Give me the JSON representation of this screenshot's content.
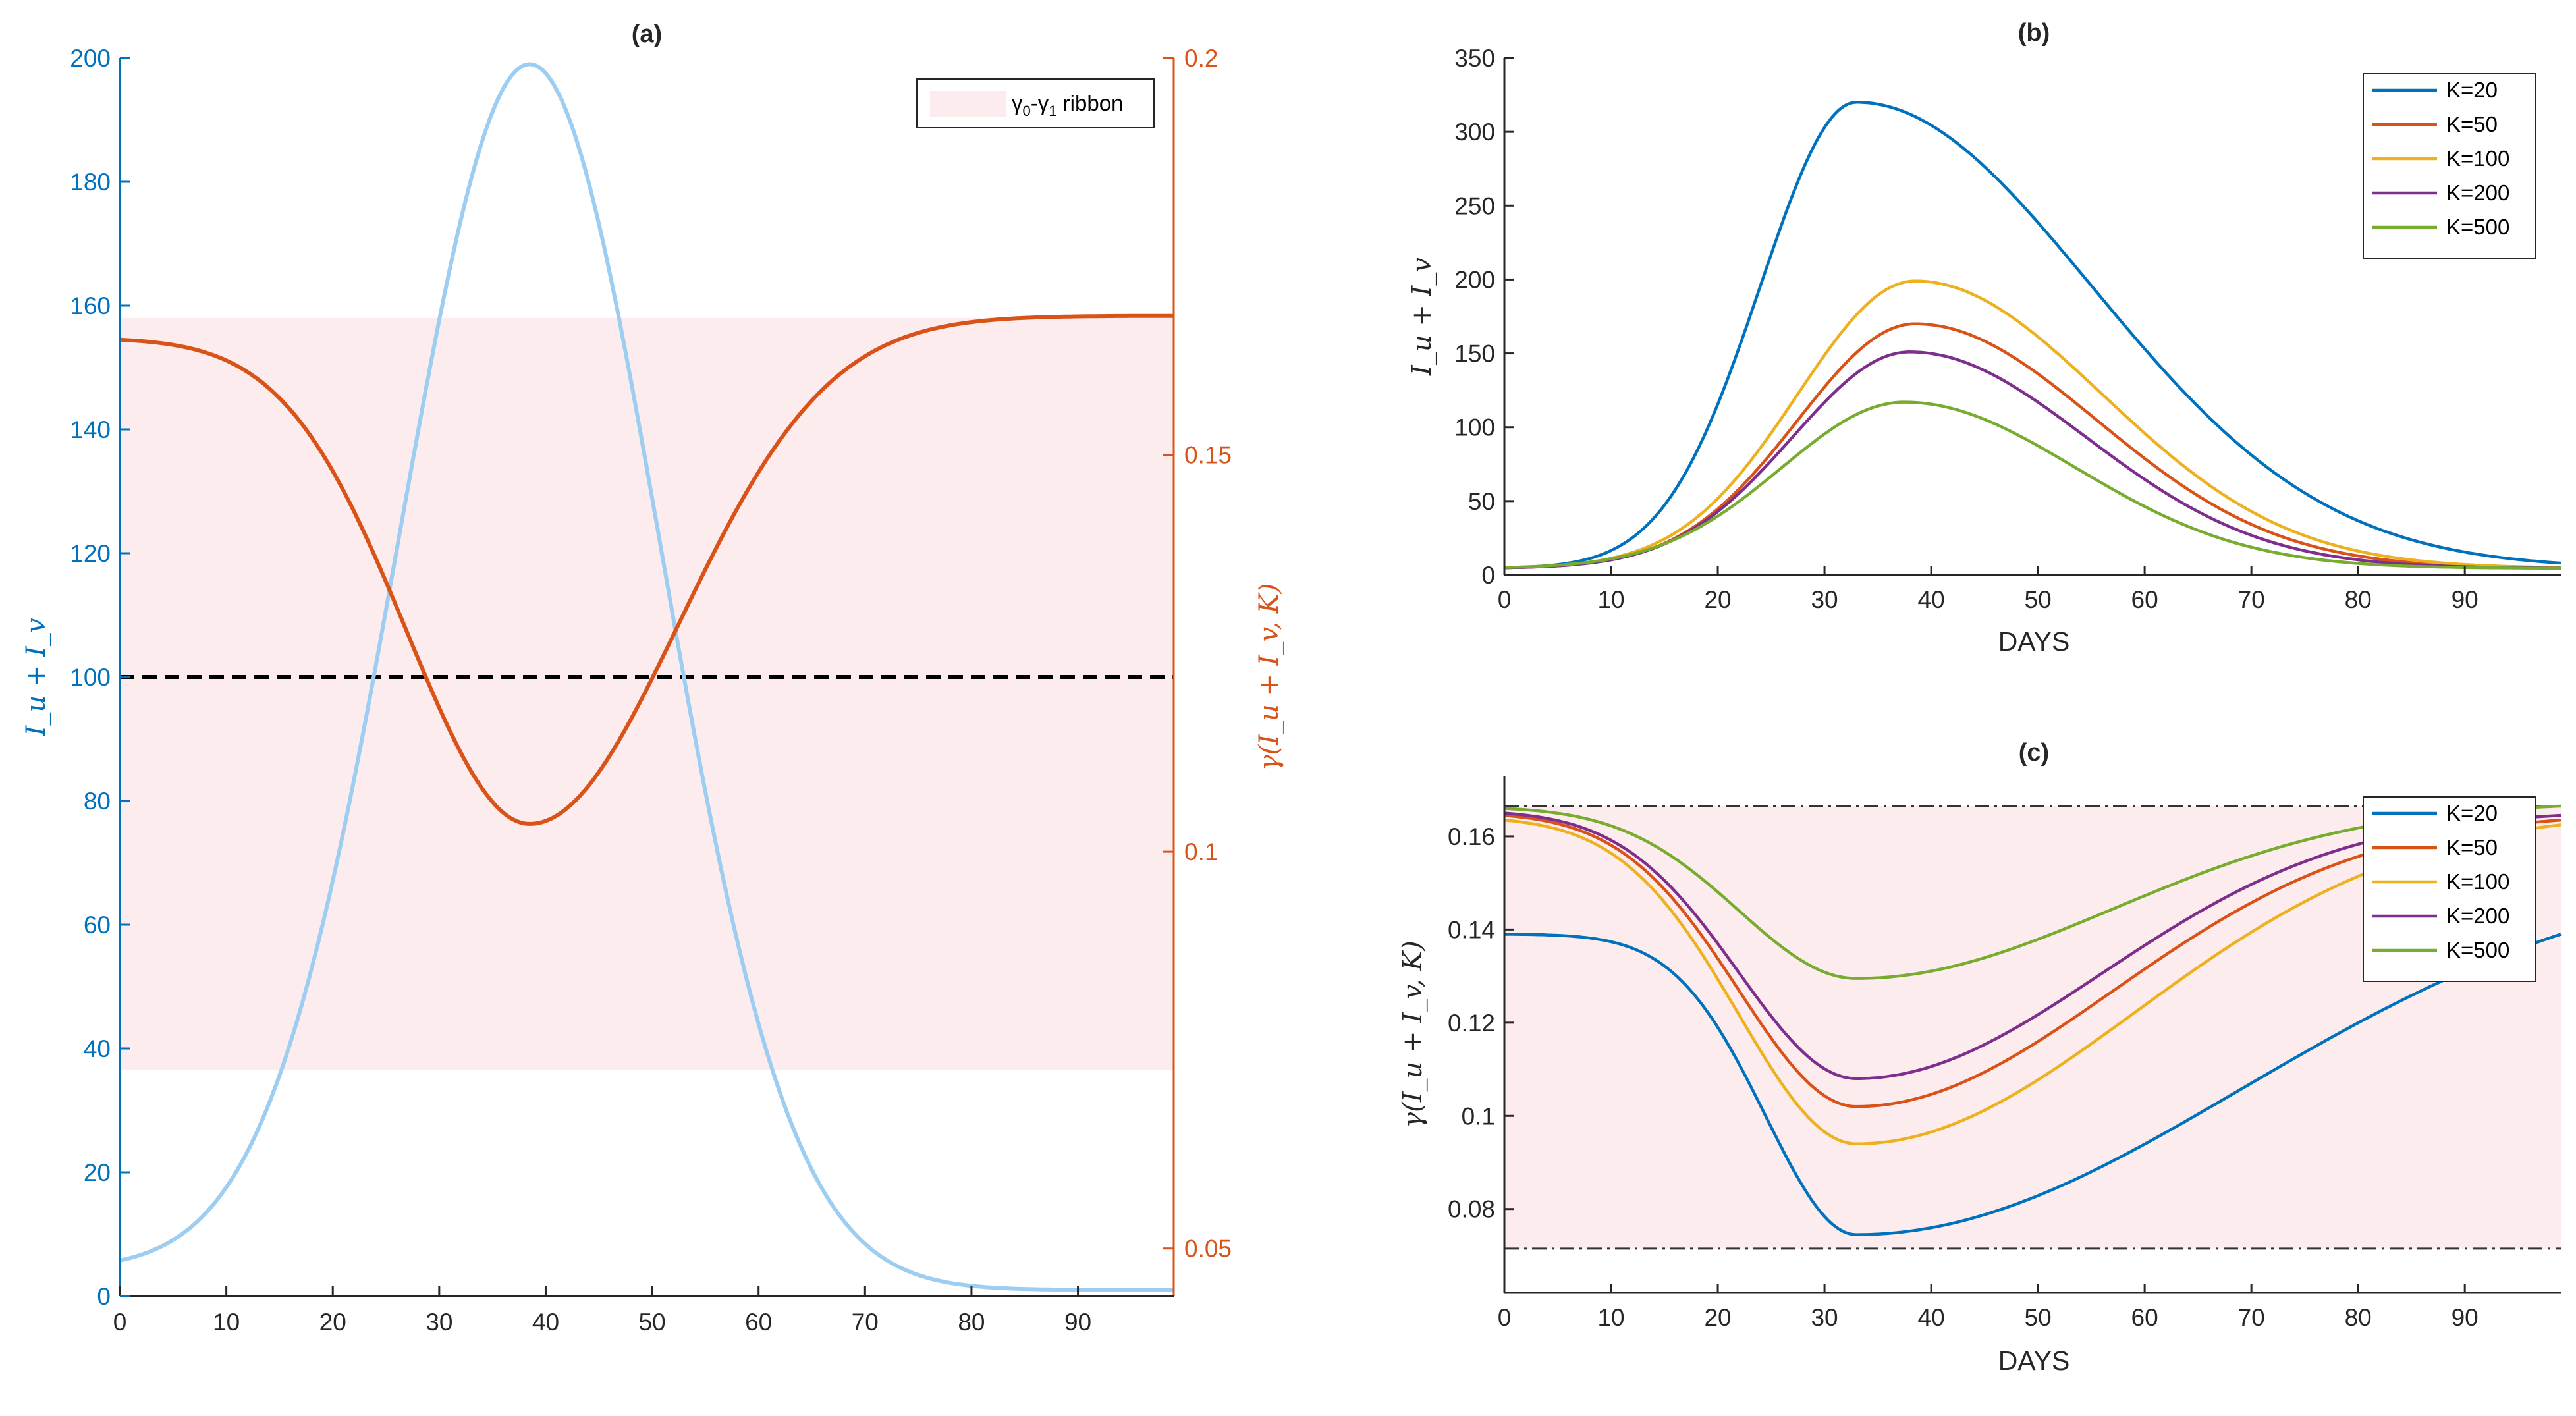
{
  "chart_data": [
    {
      "panel": "a",
      "type": "line",
      "title": "(a)",
      "xlabel": "",
      "ylabel_left": "I_u + I_v",
      "ylabel_right": "γ(I_u + I_v, K)",
      "xlim": [
        0,
        99
      ],
      "ylim_left": [
        0,
        200
      ],
      "ylim_right": [
        0.044,
        0.2
      ],
      "x_ticks": [
        "0",
        "10",
        "20",
        "30",
        "40",
        "50",
        "60",
        "70",
        "80",
        "90"
      ],
      "y_left_ticks": [
        "0",
        "20",
        "40",
        "60",
        "80",
        "100",
        "120",
        "140",
        "160",
        "180",
        "200"
      ],
      "y_right_ticks": [
        "0.05",
        "0.1",
        "0.15",
        "0.2"
      ],
      "ribbon": {
        "label_gamma0": "γ",
        "label_sub0": "0",
        "label_dash": "-",
        "label_gamma1": "γ",
        "label_sub1": "1",
        "label_word": "ribbon",
        "y_left_range": [
          36.5,
          158
        ],
        "color": "#fdeced"
      },
      "dashed_line": {
        "y": 100,
        "color": "#000000"
      },
      "series": [
        {
          "name": "I_u + I_v",
          "axis": "left",
          "color": "#9dcdf0",
          "curve": {
            "base": 4.3,
            "peak": 199,
            "peak_x": 38.5,
            "sigma": 12.3,
            "tail": 1,
            "end_x": 99
          }
        },
        {
          "name": "γ(I_u + I_v, K)",
          "axis": "right",
          "color": "#d95319",
          "curve": {
            "start": 0.1645,
            "min": 0.1035,
            "min_x": 38.5,
            "end": 0.1675,
            "sigma_left": 11.5,
            "sigma_right": 14.0
          }
        }
      ]
    },
    {
      "panel": "b",
      "type": "line",
      "title": "(b)",
      "xlabel": "DAYS",
      "ylabel": "I_u + I_v",
      "xlim": [
        0,
        99
      ],
      "ylim": [
        0,
        350
      ],
      "x_ticks": [
        "0",
        "10",
        "20",
        "30",
        "40",
        "50",
        "60",
        "70",
        "80",
        "90"
      ],
      "y_ticks": [
        "0",
        "50",
        "100",
        "150",
        "200",
        "250",
        "300",
        "350"
      ],
      "legend_position": "top-right",
      "series": [
        {
          "name": "K=20",
          "color": "#0072bd",
          "curve": {
            "base": 4.5,
            "peak": 320,
            "peak_x": 33,
            "sigma_left": 9.0,
            "sigma_right": 22.0
          }
        },
        {
          "name": "K=50",
          "color": "#d95319",
          "curve": {
            "base": 4.5,
            "peak": 170,
            "peak_x": 38.5,
            "sigma_left": 11.0,
            "sigma_right": 17.0
          }
        },
        {
          "name": "K=100",
          "color": "#edb120",
          "curve": {
            "base": 4.5,
            "peak": 199,
            "peak_x": 38.5,
            "sigma_left": 11.0,
            "sigma_right": 17.5
          }
        },
        {
          "name": "K=200",
          "color": "#7e2f8e",
          "curve": {
            "base": 4.5,
            "peak": 151,
            "peak_x": 38,
            "sigma_left": 11.0,
            "sigma_right": 16.5
          }
        },
        {
          "name": "K=500",
          "color": "#77ac30",
          "curve": {
            "base": 4.5,
            "peak": 117,
            "peak_x": 37.5,
            "sigma_left": 11.5,
            "sigma_right": 16.0
          }
        }
      ]
    },
    {
      "panel": "c",
      "type": "line",
      "title": "(c)",
      "xlabel": "DAYS",
      "ylabel": "γ(I_u + I_v, K)",
      "xlim": [
        0,
        99
      ],
      "ylim": [
        0.062,
        0.173
      ],
      "x_ticks": [
        "0",
        "10",
        "20",
        "30",
        "40",
        "50",
        "60",
        "70",
        "80",
        "90"
      ],
      "y_ticks": [
        "0.08",
        "0.1",
        "0.12",
        "0.14",
        "0.16"
      ],
      "ribbon": {
        "y_range": [
          0.0715,
          0.1665
        ],
        "color": "#fdeced"
      },
      "bound_lines": [
        0.0715,
        0.1665
      ],
      "legend_position": "top-right",
      "series": [
        {
          "name": "K=20",
          "color": "#0072bd",
          "curve": {
            "start": 0.139,
            "min": 0.0745,
            "min_x": 33,
            "end": 0.139,
            "sigma_left": 8.5,
            "sigma_right": 36.0
          }
        },
        {
          "name": "K=50",
          "color": "#d95319",
          "curve": {
            "start": 0.1645,
            "min": 0.102,
            "min_x": 33,
            "end": 0.1635,
            "sigma_left": 11.0,
            "sigma_right": 24.0
          }
        },
        {
          "name": "K=100",
          "color": "#edb120",
          "curve": {
            "start": 0.1635,
            "min": 0.094,
            "min_x": 33,
            "end": 0.1625,
            "sigma_left": 11.0,
            "sigma_right": 26.0
          }
        },
        {
          "name": "K=200",
          "color": "#7e2f8e",
          "curve": {
            "start": 0.165,
            "min": 0.108,
            "min_x": 33,
            "end": 0.1645,
            "sigma_left": 11.0,
            "sigma_right": 23.0
          }
        },
        {
          "name": "K=500",
          "color": "#77ac30",
          "curve": {
            "start": 0.166,
            "min": 0.1295,
            "min_x": 33,
            "end": 0.1665,
            "sigma_left": 11.0,
            "sigma_right": 24.0
          }
        }
      ]
    }
  ]
}
